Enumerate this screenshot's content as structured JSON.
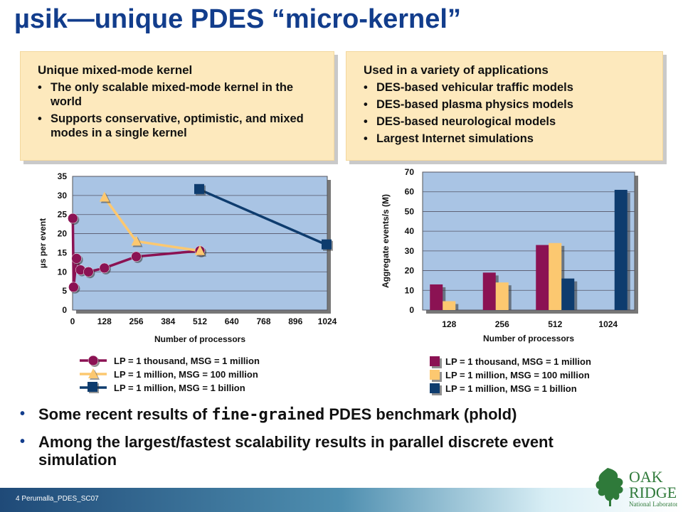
{
  "title": "µsik—unique PDES “micro-kernel”",
  "left_box": {
    "heading": "Unique mixed-mode kernel",
    "bullets": [
      "The only scalable mixed-mode kernel in the world",
      "Supports conservative, optimistic, and mixed modes in a single kernel"
    ]
  },
  "right_box": {
    "heading": "Used in a variety of applications",
    "bullets": [
      "DES-based vehicular traffic models",
      "DES-based plasma physics models",
      "DES-based neurological models",
      "Largest Internet simulations"
    ]
  },
  "bottom_bullets": [
    {
      "pre": "Some recent results of ",
      "em": "fine-grained",
      "post": " PDES benchmark (phold)"
    },
    {
      "pre": "Among the largest/fastest scalability results in parallel discrete event simulation",
      "em": "",
      "post": ""
    }
  ],
  "footer": "4  Perumalla_PDES_SC07",
  "logo": {
    "line1": "OAK",
    "line2": "RIDGE",
    "line3": "National Laboratory"
  },
  "colors": {
    "series1": "#8b1253",
    "series2": "#fcc870",
    "series3": "#0e3c6e",
    "plot_bg": "#a9c4e4",
    "title": "#123d8c"
  },
  "chart_data": [
    {
      "type": "scatter",
      "xlabel": "Number of processors",
      "ylabel": "µs per event",
      "xlim": [
        0,
        1024
      ],
      "ylim": [
        0,
        35
      ],
      "xticks": [
        0,
        128,
        256,
        384,
        512,
        640,
        768,
        896,
        1024
      ],
      "yticks": [
        0,
        5,
        10,
        15,
        20,
        25,
        30,
        35
      ],
      "grid": true,
      "legend": "bottom",
      "series": [
        {
          "name": "LP = 1 thousand, MSG = 1 million",
          "marker": "circle",
          "points": [
            [
              1,
              24
            ],
            [
              4,
              6
            ],
            [
              16,
              13.5
            ],
            [
              32,
              10.5
            ],
            [
              64,
              10
            ],
            [
              128,
              11
            ],
            [
              256,
              14
            ],
            [
              512,
              15.5
            ]
          ]
        },
        {
          "name": "LP = 1 million, MSG = 100 million",
          "marker": "triangle",
          "points": [
            [
              128,
              29.5
            ],
            [
              256,
              18
            ],
            [
              512,
              15.5
            ]
          ]
        },
        {
          "name": "LP = 1 million, MSG = 1 billion",
          "marker": "square",
          "points": [
            [
              512,
              31.5
            ],
            [
              1024,
              17
            ]
          ]
        }
      ]
    },
    {
      "type": "bar",
      "xlabel": "Number of processors",
      "ylabel": "Aggregate events/s (M)",
      "ylim": [
        0,
        70
      ],
      "yticks": [
        0,
        10,
        20,
        30,
        40,
        50,
        60,
        70
      ],
      "grid": true,
      "legend": "bottom",
      "categories": [
        "128",
        "256",
        "512",
        "1024"
      ],
      "series": [
        {
          "name": "LP = 1 thousand, MSG = 1 million",
          "values": [
            13,
            19,
            33,
            null
          ]
        },
        {
          "name": "LP = 1 million, MSG = 100 million",
          "values": [
            4.5,
            14,
            34,
            null
          ]
        },
        {
          "name": "LP = 1 million, MSG = 1 billion",
          "values": [
            null,
            null,
            16,
            61
          ]
        }
      ]
    }
  ]
}
